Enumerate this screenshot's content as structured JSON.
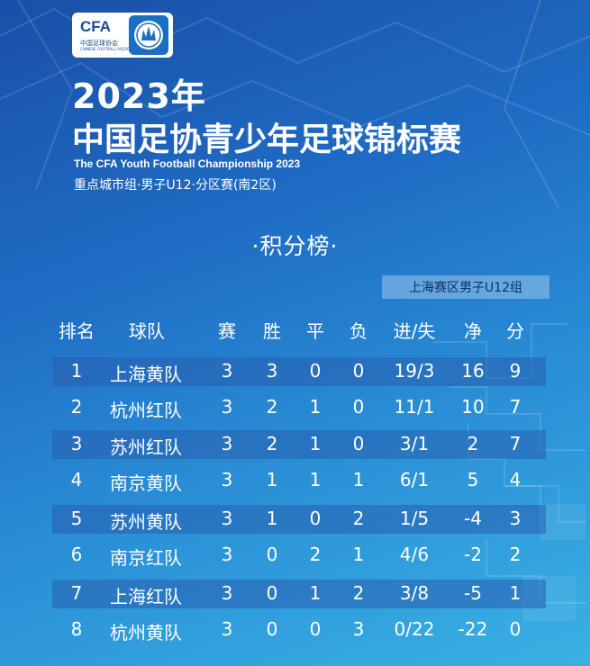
{
  "logo": {
    "abbr": "CFA",
    "cn": "中国足球协会",
    "en": "CHINESE FOOTBALL ASSOCIATION",
    "icon": "cfa-emblem-icon"
  },
  "year": "2023年",
  "title": "中国足协青少年足球锦标赛",
  "subtitle_en": "The CFA Youth Football Championship 2023",
  "subtitle_cn": "重点城市组·男子U12·分区赛(南2区)",
  "board_title": "·积分榜·",
  "zone_tag": "上海赛区男子U12组",
  "columns": [
    "排名",
    "球队",
    "赛",
    "胜",
    "平",
    "负",
    "进/失",
    "净",
    "分"
  ],
  "rows": [
    [
      "1",
      "上海黄队",
      "3",
      "3",
      "0",
      "0",
      "19/3",
      "16",
      "9"
    ],
    [
      "2",
      "杭州红队",
      "3",
      "2",
      "1",
      "0",
      "11/1",
      "10",
      "7"
    ],
    [
      "3",
      "苏州红队",
      "3",
      "2",
      "1",
      "0",
      "3/1",
      "2",
      "7"
    ],
    [
      "4",
      "南京黄队",
      "3",
      "1",
      "1",
      "1",
      "6/1",
      "5",
      "4"
    ],
    [
      "5",
      "苏州黄队",
      "3",
      "1",
      "0",
      "2",
      "1/5",
      "-4",
      "3"
    ],
    [
      "6",
      "南京红队",
      "3",
      "0",
      "2",
      "1",
      "4/6",
      "-2",
      "2"
    ],
    [
      "7",
      "上海红队",
      "3",
      "0",
      "1",
      "2",
      "3/8",
      "-5",
      "1"
    ],
    [
      "8",
      "杭州黄队",
      "3",
      "0",
      "0",
      "3",
      "0/22",
      "-22",
      "0"
    ]
  ],
  "colors": {
    "bg_top": "#1a4fa8",
    "bg_bottom": "#39b1e4",
    "row_band": "#285faf",
    "tag_text": "#0e2f63"
  }
}
